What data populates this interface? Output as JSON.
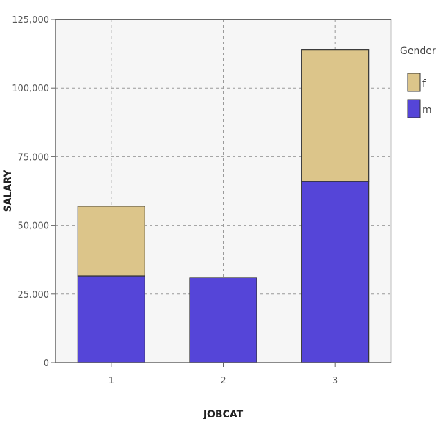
{
  "chart_data": {
    "type": "bar",
    "stacked": true,
    "title": "",
    "xlabel": "JOBCAT",
    "ylabel": "SALARY",
    "categories": [
      "1",
      "2",
      "3"
    ],
    "series": [
      {
        "name": "m",
        "values": [
          31500,
          31000,
          66000
        ],
        "color": "#5545d8"
      },
      {
        "name": "f",
        "values": [
          25500,
          0,
          48000
        ],
        "color": "#dcc58a"
      }
    ],
    "ylim": [
      0,
      125000
    ],
    "yticks": [
      0,
      25000,
      50000,
      75000,
      100000,
      125000
    ],
    "ytick_labels": [
      "0",
      "25,000",
      "50,000",
      "75,000",
      "100,000",
      "125,000"
    ],
    "grid": true,
    "legend": {
      "title": "Gender",
      "placement": "right",
      "entries": [
        "f",
        "m"
      ]
    },
    "colors": {
      "plot_background": "#f6f6f6",
      "grid": "#9a9a9a",
      "bar_outline": "#333333",
      "axis": "#666666"
    }
  }
}
